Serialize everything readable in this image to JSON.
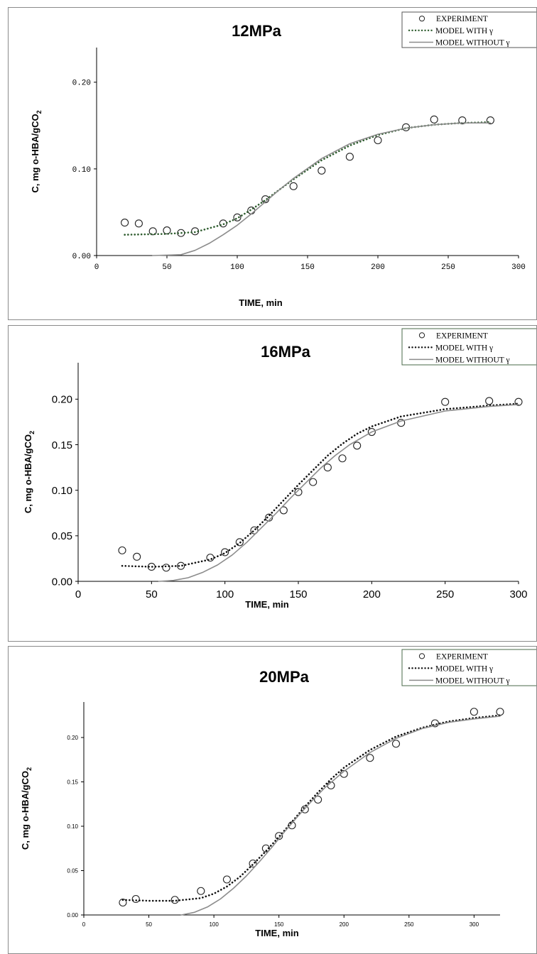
{
  "charts": [
    {
      "id": "p1",
      "chart_data": {
        "type": "scatter",
        "title": "12MPa",
        "xlabel": "TIME, min",
        "ylabel": "C, mg o-HBA/gCO",
        "ylabel_sub": "2",
        "xlim": [
          0,
          300
        ],
        "ylim": [
          0,
          0.24
        ],
        "xticks": [
          0,
          50,
          100,
          150,
          200,
          250,
          300
        ],
        "xtick_labels": [
          "0",
          "50",
          "100",
          "150",
          "200",
          "250",
          "300"
        ],
        "yticks": [
          0,
          0.1,
          0.2
        ],
        "ytick_labels": [
          "0.00",
          "0.10",
          "0.20"
        ],
        "legend": {
          "position": "top-right",
          "entries": [
            "EXPERIMENT",
            "MODEL WITH γ",
            "MODEL WITHOUT γ"
          ]
        },
        "series": [
          {
            "name": "EXPERIMENT",
            "kind": "markers",
            "x": [
              20,
              30,
              40,
              50,
              60,
              70,
              90,
              100,
              110,
              120,
              140,
              160,
              180,
              200,
              220,
              240,
              260,
              280
            ],
            "y": [
              0.038,
              0.037,
              0.028,
              0.029,
              0.026,
              0.028,
              0.037,
              0.044,
              0.052,
              0.065,
              0.08,
              0.098,
              0.114,
              0.133,
              0.148,
              0.157,
              0.156,
              0.156
            ]
          },
          {
            "name": "MODEL WITH γ",
            "kind": "dotted",
            "x": [
              20,
              50,
              70,
              90,
              100,
              110,
              120,
              130,
              140,
              160,
              180,
              200,
              220,
              240,
              260,
              280
            ],
            "y": [
              0.024,
              0.025,
              0.027,
              0.036,
              0.043,
              0.053,
              0.064,
              0.076,
              0.088,
              0.11,
              0.127,
              0.139,
              0.147,
              0.151,
              0.153,
              0.154
            ]
          },
          {
            "name": "MODEL WITHOUT γ",
            "kind": "solid",
            "x": [
              40,
              60,
              70,
              80,
              90,
              100,
              110,
              120,
              130,
              140,
              160,
              180,
              200,
              220,
              240,
              260,
              280
            ],
            "y": [
              0.0,
              0.001,
              0.006,
              0.014,
              0.024,
              0.035,
              0.048,
              0.062,
              0.076,
              0.089,
              0.112,
              0.129,
              0.14,
              0.147,
              0.151,
              0.153,
              0.153
            ]
          }
        ]
      }
    },
    {
      "id": "p2",
      "chart_data": {
        "type": "scatter",
        "title": "16MPa",
        "xlabel": "TIME, min",
        "ylabel": "C, mg o-HBA/gCO",
        "ylabel_sub": "2",
        "xlim": [
          0,
          300
        ],
        "ylim": [
          0,
          0.24
        ],
        "xticks": [
          0,
          50,
          100,
          150,
          200,
          250,
          300
        ],
        "xtick_labels": [
          "0",
          "50",
          "100",
          "150",
          "200",
          "250",
          "300"
        ],
        "yticks": [
          0,
          0.05,
          0.1,
          0.15,
          0.2
        ],
        "ytick_labels": [
          "0.00",
          "0.05",
          "0.10",
          "0.15",
          "0.20"
        ],
        "legend": {
          "position": "top-right",
          "entries": [
            "EXPERIMENT",
            "MODEL WITH γ",
            "MODEL WITHOUT γ"
          ]
        },
        "series": [
          {
            "name": "EXPERIMENT",
            "kind": "markers",
            "x": [
              30,
              40,
              50,
              60,
              70,
              90,
              100,
              110,
              120,
              130,
              140,
              150,
              160,
              170,
              180,
              190,
              200,
              220,
              250,
              280,
              300
            ],
            "y": [
              0.034,
              0.027,
              0.016,
              0.015,
              0.017,
              0.026,
              0.032,
              0.043,
              0.056,
              0.07,
              0.078,
              0.098,
              0.109,
              0.125,
              0.135,
              0.149,
              0.164,
              0.174,
              0.197,
              0.198,
              0.197
            ]
          },
          {
            "name": "MODEL WITH γ",
            "kind": "dotted",
            "x": [
              30,
              50,
              70,
              90,
              100,
              110,
              120,
              130,
              140,
              150,
              160,
              170,
              180,
              190,
              200,
              220,
              250,
              280,
              300
            ],
            "y": [
              0.017,
              0.016,
              0.017,
              0.024,
              0.031,
              0.042,
              0.056,
              0.072,
              0.089,
              0.106,
              0.122,
              0.138,
              0.151,
              0.162,
              0.17,
              0.181,
              0.189,
              0.193,
              0.195
            ]
          },
          {
            "name": "MODEL WITHOUT γ",
            "kind": "solid",
            "x": [
              55,
              65,
              75,
              85,
              95,
              105,
              115,
              125,
              135,
              145,
              155,
              165,
              175,
              185,
              200,
              220,
              250,
              280,
              300
            ],
            "y": [
              0.0,
              0.001,
              0.004,
              0.01,
              0.018,
              0.029,
              0.043,
              0.059,
              0.075,
              0.092,
              0.108,
              0.124,
              0.138,
              0.15,
              0.164,
              0.176,
              0.187,
              0.192,
              0.194
            ]
          }
        ]
      }
    },
    {
      "id": "p3",
      "chart_data": {
        "type": "scatter",
        "title": "20MPa",
        "xlabel": "TIME, min",
        "ylabel": "C, mg o-HBA/gCO",
        "ylabel_sub": "2",
        "xlim": [
          0,
          320
        ],
        "ylim": [
          0,
          0.24
        ],
        "xticks": [
          0,
          50,
          100,
          150,
          200,
          250,
          300
        ],
        "xtick_labels": [
          "0",
          "50",
          "100",
          "150",
          "200",
          "250",
          "300"
        ],
        "yticks": [
          0,
          0.05,
          0.1,
          0.15,
          0.2
        ],
        "ytick_labels": [
          "0.00",
          "0.05",
          "0.10",
          "0.15",
          "0.20"
        ],
        "legend": {
          "position": "top-right",
          "entries": [
            "EXPERIMENT",
            "MODEL WITH γ",
            "MODEL WITHOUT γ"
          ]
        },
        "series": [
          {
            "name": "EXPERIMENT",
            "kind": "markers",
            "x": [
              30,
              40,
              70,
              90,
              110,
              130,
              140,
              150,
              160,
              170,
              180,
              190,
              200,
              220,
              240,
              270,
              300,
              320
            ],
            "y": [
              0.014,
              0.018,
              0.017,
              0.027,
              0.04,
              0.058,
              0.075,
              0.089,
              0.101,
              0.119,
              0.13,
              0.146,
              0.159,
              0.177,
              0.193,
              0.216,
              0.229,
              0.229
            ]
          },
          {
            "name": "MODEL WITH γ",
            "kind": "dotted",
            "x": [
              30,
              50,
              70,
              90,
              100,
              110,
              120,
              130,
              140,
              150,
              160,
              170,
              180,
              190,
              200,
              220,
              240,
              260,
              280,
              300,
              320
            ],
            "y": [
              0.017,
              0.016,
              0.016,
              0.019,
              0.024,
              0.032,
              0.043,
              0.057,
              0.072,
              0.088,
              0.105,
              0.122,
              0.138,
              0.153,
              0.166,
              0.186,
              0.201,
              0.211,
              0.218,
              0.222,
              0.225
            ]
          },
          {
            "name": "MODEL WITHOUT γ",
            "kind": "solid",
            "x": [
              75,
              85,
              95,
              105,
              115,
              125,
              135,
              145,
              155,
              165,
              175,
              185,
              200,
              220,
              240,
              260,
              280,
              300,
              320
            ],
            "y": [
              0.0,
              0.003,
              0.009,
              0.018,
              0.03,
              0.044,
              0.06,
              0.077,
              0.095,
              0.112,
              0.128,
              0.143,
              0.162,
              0.183,
              0.199,
              0.21,
              0.217,
              0.221,
              0.224
            ]
          }
        ]
      }
    }
  ]
}
